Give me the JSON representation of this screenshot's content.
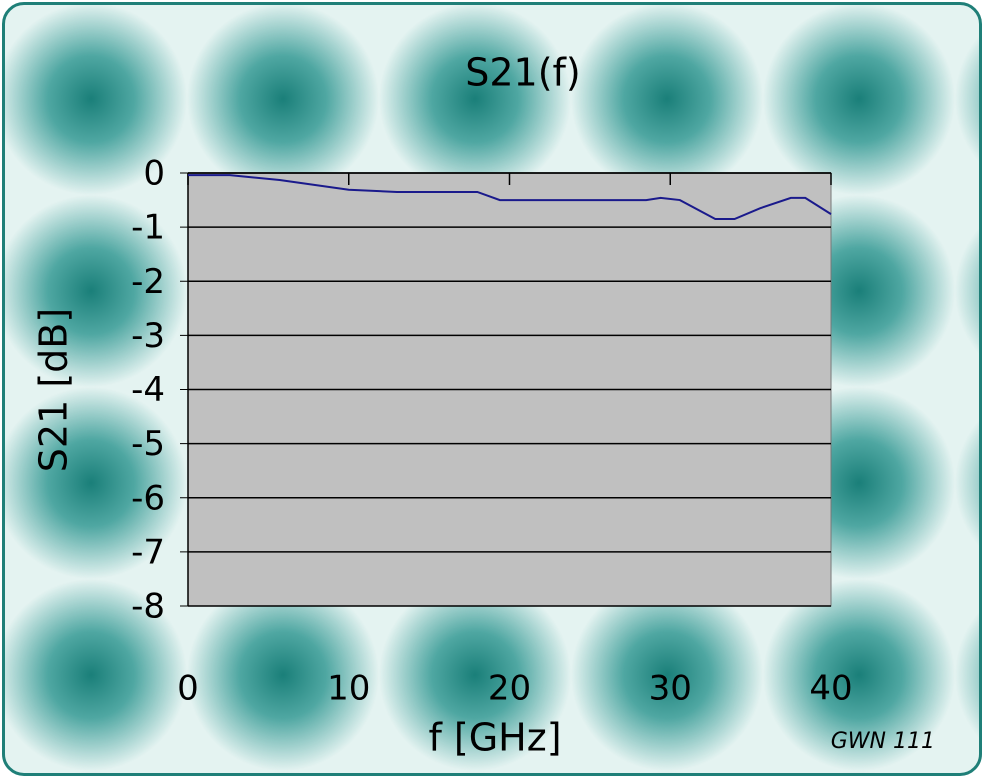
{
  "chart_data": {
    "type": "line",
    "title": "S21(f)",
    "x_label": "f [GHz]",
    "y_label": "S21 [dB]",
    "x": [
      0,
      2.6,
      5.7,
      10,
      13,
      18,
      19.4,
      23,
      25.5,
      28.5,
      29.4,
      30.6,
      32.8,
      34,
      35.6,
      37.5,
      38.4,
      40
    ],
    "values": [
      -0.04,
      -0.04,
      -0.13,
      -0.31,
      -0.35,
      -0.35,
      -0.5,
      -0.5,
      -0.5,
      -0.5,
      -0.46,
      -0.5,
      -0.85,
      -0.85,
      -0.65,
      -0.46,
      -0.46,
      -0.76
    ],
    "color": "#1a1a8c",
    "xlim": [
      0,
      40
    ],
    "xticks": [
      0,
      10,
      20,
      30,
      40
    ],
    "ylim": [
      -8,
      0
    ],
    "yticks": [
      0,
      -1,
      -2,
      -3,
      -4,
      -5,
      -6,
      -7,
      -8
    ],
    "grid": true,
    "plot_color": "#c0c0c0"
  },
  "footer": "GWN 111"
}
